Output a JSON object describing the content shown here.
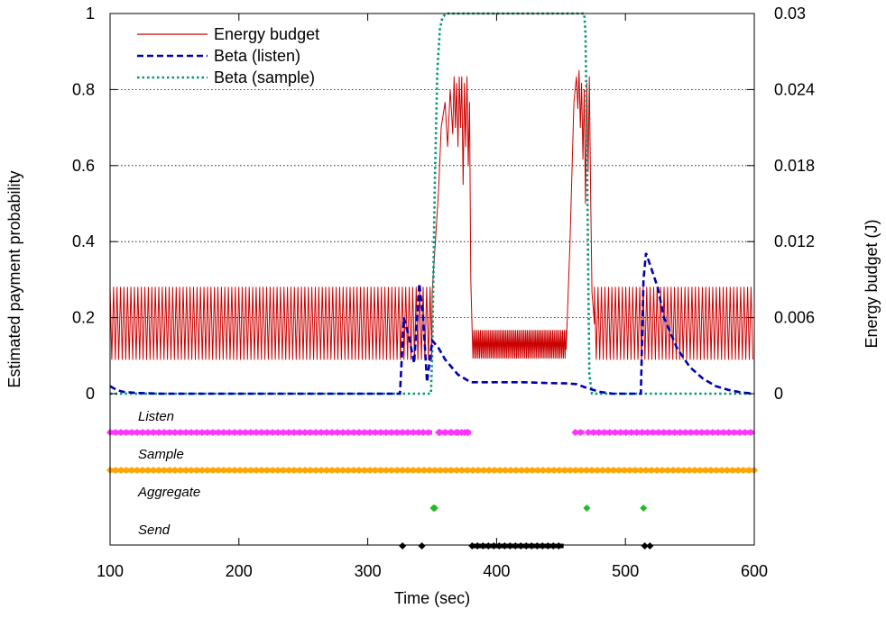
{
  "chart_data": {
    "type": "line",
    "xlabel": "Time (sec)",
    "ylabel": "Estimated payment probability",
    "y2label": "Energy budget (J)",
    "xlim": [
      100,
      600
    ],
    "ylim": [
      0,
      1
    ],
    "y2lim": [
      0,
      0.03
    ],
    "x_ticks": [
      "100",
      "200",
      "300",
      "400",
      "500",
      "600"
    ],
    "y_ticks": [
      "0",
      "0.2",
      "0.4",
      "0.6",
      "0.8",
      "1"
    ],
    "y2_ticks": [
      "0",
      "0.006",
      "0.012",
      "0.018",
      "0.024",
      "0.03"
    ],
    "gridlines_y": true,
    "legend_position": "top-left",
    "colors": {
      "energy": "#cc0000",
      "beta_listen": "#0000b0",
      "beta_sample": "#009977",
      "listen": "#ff33ff",
      "sample": "#ffa500",
      "aggregate": "#22bb22",
      "send": "#000000"
    },
    "series": [
      {
        "name": "Energy budget",
        "axis": "y2",
        "style": "solid",
        "segments": [
          {
            "type": "oscillation",
            "x_start": 100,
            "x_end": 350,
            "period": 2.7,
            "low": 0.0027,
            "high": 0.0084
          },
          {
            "type": "points",
            "x": [
              350,
              355,
              357,
              360,
              362,
              364,
              366,
              367,
              368,
              369,
              370,
              371,
              372,
              373,
              374,
              375,
              376,
              377,
              378,
              379,
              380,
              381
            ],
            "y": [
              0.008,
              0.016,
              0.021,
              0.023,
              0.0195,
              0.024,
              0.0205,
              0.025,
              0.021,
              0.0245,
              0.0195,
              0.025,
              0.021,
              0.025,
              0.0165,
              0.0245,
              0.0195,
              0.025,
              0.018,
              0.023,
              0.009,
              0.005
            ]
          },
          {
            "type": "oscillation",
            "x_start": 381,
            "x_end": 454,
            "period": 1.3,
            "low": 0.0028,
            "high": 0.005
          },
          {
            "type": "points",
            "x": [
              454,
              457,
              460,
              462,
              463,
              464,
              465,
              466,
              467,
              468,
              469,
              470,
              471,
              472,
              473,
              474,
              476
            ],
            "y": [
              0.0035,
              0.012,
              0.023,
              0.025,
              0.0225,
              0.0255,
              0.021,
              0.0245,
              0.0185,
              0.024,
              0.015,
              0.0245,
              0.0175,
              0.025,
              0.016,
              0.008,
              0.0055
            ]
          },
          {
            "type": "oscillation",
            "x_start": 476,
            "x_end": 600,
            "period": 2.7,
            "low": 0.0027,
            "high": 0.0084
          }
        ]
      },
      {
        "name": "Beta (listen)",
        "axis": "y1",
        "style": "dashed",
        "x": [
          100,
          105,
          110,
          120,
          140,
          200,
          300,
          325,
          328,
          332,
          336,
          340,
          343,
          346,
          350,
          355,
          360,
          370,
          380,
          390,
          400,
          420,
          440,
          455,
          462,
          470,
          480,
          490,
          505,
          512,
          514,
          516,
          520,
          525,
          530,
          540,
          550,
          560,
          570,
          580,
          590,
          600
        ],
        "y": [
          0.02,
          0.01,
          0.005,
          0.002,
          0.0,
          0.0,
          0.0,
          0.0,
          0.2,
          0.15,
          0.08,
          0.29,
          0.2,
          0.03,
          0.14,
          0.12,
          0.09,
          0.05,
          0.03,
          0.03,
          0.03,
          0.03,
          0.028,
          0.027,
          0.025,
          0.015,
          0.005,
          0.0,
          0.0,
          0.0,
          0.3,
          0.37,
          0.33,
          0.28,
          0.2,
          0.12,
          0.07,
          0.04,
          0.02,
          0.01,
          0.003,
          0.0
        ]
      },
      {
        "name": "Beta (sample)",
        "axis": "y1",
        "style": "dotted",
        "x": [
          100,
          349,
          350,
          352,
          354,
          356,
          358,
          361,
          365,
          370,
          465,
          468,
          469,
          470,
          471,
          472,
          474,
          600
        ],
        "y": [
          0,
          0,
          0.1,
          0.55,
          0.85,
          0.96,
          0.99,
          1.0,
          1.0,
          1.0,
          1.0,
          1.0,
          0.95,
          0.7,
          0.35,
          0.05,
          0.0,
          0.0
        ]
      }
    ],
    "events": [
      {
        "name": "Listen",
        "color": "#ff33ff",
        "ranges": [
          [
            100,
            342
          ],
          [
            343,
            350
          ],
          [
            356,
            380
          ],
          [
            461,
            468
          ],
          [
            471,
            600
          ]
        ],
        "points": [
          355,
          360,
          365,
          370,
          375,
          378
        ]
      },
      {
        "name": "Sample",
        "color": "#ffa500",
        "ranges": [
          [
            100,
            600
          ]
        ],
        "points": []
      },
      {
        "name": "Aggregate",
        "color": "#22bb22",
        "ranges": [],
        "points": [
          351,
          352,
          470,
          514
        ]
      },
      {
        "name": "Send",
        "color": "#000000",
        "ranges": [
          [
            381,
            452
          ]
        ],
        "points": [
          327,
          342,
          515,
          519
        ]
      }
    ]
  }
}
